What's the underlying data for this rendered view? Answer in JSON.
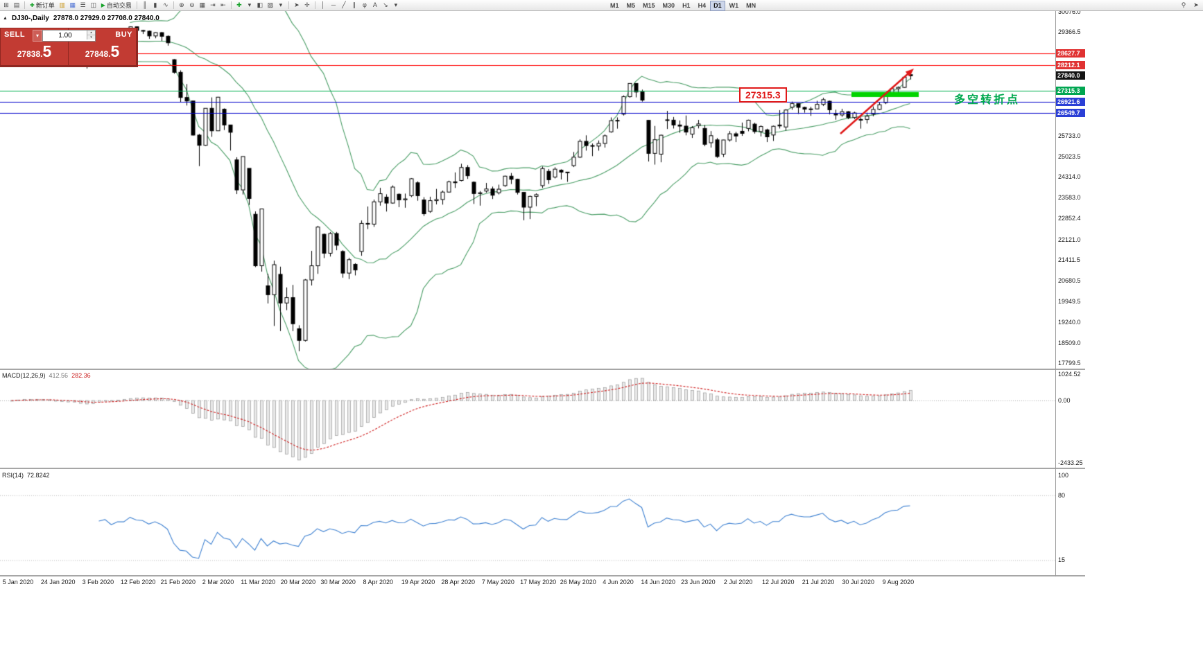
{
  "colors": {
    "panel_red": "#c23b33",
    "panel_red_dark": "#8f2721",
    "tag_red": "#e03232",
    "tag_black": "#141414",
    "tag_green": "#00a651",
    "tag_blue": "#2b3fd6",
    "line_red": "#ff0000",
    "line_green": "#00b050",
    "line_blue": "#0000cc",
    "band_green": "#4a9e66",
    "rsi_blue": "#3f82d2",
    "macd_bar_fill": "#e8e8e8",
    "macd_bar_stroke": "#8c8c8c",
    "macd_signal": "#d02020",
    "highlight_green": "#00d400",
    "arrow_red": "#e01818",
    "callout_red": "#e01818",
    "annotation_green": "#00a94f",
    "candle_up": "#ffffff",
    "candle_down": "#000000",
    "candle_border": "#000000"
  },
  "toolbar": {
    "items": [
      {
        "name": "new-chart-icon",
        "glyph": "⊞"
      },
      {
        "name": "profiles-icon",
        "glyph": "▤"
      },
      {
        "sep": true
      },
      {
        "name": "new-order-button",
        "icon": "✚",
        "icon_color": "#18a32b",
        "label": "新订单"
      },
      {
        "name": "market-watch-icon",
        "glyph": "▥",
        "color": "#c9971d"
      },
      {
        "name": "data-window-icon",
        "glyph": "▦",
        "color": "#4a6fd4"
      },
      {
        "name": "navigator-icon",
        "glyph": "☰"
      },
      {
        "name": "terminal-icon",
        "glyph": "◫"
      },
      {
        "name": "autotrade-button",
        "icon": "▶",
        "icon_color": "#18a32b",
        "label": "自动交易"
      },
      {
        "sep": true
      },
      {
        "name": "bar-chart-icon",
        "glyph": "║"
      },
      {
        "name": "candlestick-chart-icon",
        "glyph": "▮"
      },
      {
        "name": "line-chart-icon",
        "glyph": "∿"
      },
      {
        "sep": true
      },
      {
        "name": "zoom-in-icon",
        "glyph": "⊕"
      },
      {
        "name": "zoom-out-icon",
        "glyph": "⊖"
      },
      {
        "name": "tile-windows-icon",
        "glyph": "▦"
      },
      {
        "name": "auto-scroll-icon",
        "glyph": "⇥"
      },
      {
        "name": "chart-shift-icon",
        "glyph": "⇤"
      },
      {
        "sep": true
      },
      {
        "name": "indicators-icon",
        "glyph": "✚",
        "color": "#18a32b"
      },
      {
        "name": "indicators-dropdown-icon",
        "glyph": "▾"
      },
      {
        "name": "periods-icon",
        "glyph": "◧"
      },
      {
        "name": "templates-icon",
        "glyph": "▨"
      },
      {
        "name": "templates-dropdown-icon",
        "glyph": "▾"
      },
      {
        "sep": true
      },
      {
        "name": "cursor-icon",
        "glyph": "➤"
      },
      {
        "name": "crosshair-icon",
        "glyph": "✛"
      },
      {
        "sep": true
      },
      {
        "name": "vertical-line-icon",
        "glyph": "│"
      },
      {
        "name": "horizontal-line-icon",
        "glyph": "─"
      },
      {
        "name": "trendline-icon",
        "glyph": "╱"
      },
      {
        "name": "channel-icon",
        "glyph": "∥"
      },
      {
        "name": "fibonacci-icon",
        "glyph": "φ"
      },
      {
        "name": "text-label-icon",
        "glyph": "A"
      },
      {
        "name": "arrows-icon",
        "glyph": "↘"
      },
      {
        "name": "arrows-dropdown-icon",
        "glyph": "▾"
      }
    ],
    "timeframes": [
      {
        "label": "M1"
      },
      {
        "label": "M5"
      },
      {
        "label": "M15"
      },
      {
        "label": "M30"
      },
      {
        "label": "H1"
      },
      {
        "label": "H4"
      },
      {
        "label": "D1",
        "active": true
      },
      {
        "label": "W1"
      },
      {
        "label": "MN"
      }
    ],
    "right_icons": [
      {
        "name": "search-symbol-icon",
        "glyph": "⚲"
      },
      {
        "name": "pointer-tool-icon",
        "glyph": "➤"
      }
    ]
  },
  "chart_header": {
    "collapse_icon": "▲",
    "symbol": "DJ30-,Daily",
    "ohlc": "27878.0 27929.0 27708.0 27840.0"
  },
  "one_click": {
    "sell_label": "SELL",
    "buy_label": "BUY",
    "lot_value": "1.00",
    "dropdown_icon": "▾",
    "spinner_up": "▴",
    "spinner_down": "▾",
    "sell_price": {
      "main": "27838.",
      "big": "5"
    },
    "buy_price": {
      "main": "27848.",
      "big": "5"
    }
  },
  "price_scale": {
    "labels": [
      "30076.0",
      "29366.5",
      "25733.0",
      "25023.5",
      "24314.0",
      "23583.0",
      "22852.4",
      "22121.0",
      "21411.5",
      "20680.5",
      "19949.5",
      "19240.0",
      "18509.0",
      "17799.5"
    ]
  },
  "levels": [
    {
      "label": "28627.7",
      "price": 28627.7,
      "line": "red"
    },
    {
      "label": "28212.1",
      "price": 28212.1,
      "line": "red"
    },
    {
      "label": "27840.0",
      "price": 27840.0,
      "line": "none"
    },
    {
      "label": "27315.3",
      "price": 27315.3,
      "line": "green"
    },
    {
      "label": "26921.6",
      "price": 26921.6,
      "line": "blue"
    },
    {
      "label": "26549.7",
      "price": 26549.7,
      "line": "blue"
    }
  ],
  "annotations": {
    "price_callout": "27315.3",
    "turning_point_label": "多空转折点"
  },
  "macd_panel": {
    "name": "MACD(12,26,9)",
    "main_value": "412.56",
    "signal_value": "282.36",
    "scale": [
      {
        "label": "1024.52",
        "value": 1024.52
      },
      {
        "label": "0.00",
        "value": 0
      },
      {
        "label": "-2433.25",
        "value": -2433.25
      }
    ],
    "params": {
      "fast": 12,
      "slow": 26,
      "signal": 9
    }
  },
  "rsi_panel": {
    "name": "RSI(14)",
    "value": "72.8242",
    "period": 14,
    "scale": [
      {
        "label": "100",
        "value": 100
      },
      {
        "label": "80",
        "value": 80
      },
      {
        "label": "15",
        "value": 15
      }
    ]
  },
  "date_axis": [
    "5 Jan 2020",
    "24 Jan 2020",
    "3 Feb 2020",
    "12 Feb 2020",
    "21 Feb 2020",
    "2 Mar 2020",
    "11 Mar 2020",
    "20 Mar 2020",
    "30 Mar 2020",
    "8 Apr 2020",
    "19 Apr 2020",
    "28 Apr 2020",
    "7 May 2020",
    "17 May 2020",
    "26 May 2020",
    "4 Jun 2020",
    "14 Jun 2020",
    "23 Jun 2020",
    "2 Jul 2020",
    "12 Jul 2020",
    "21 Jul 2020",
    "30 Jul 2020",
    "9 Aug 2020"
  ],
  "chart_data": {
    "type": "candlestick",
    "symbol": "DJ30",
    "timeframe": "Daily",
    "bollinger": {
      "period": 20,
      "deviation": 2
    },
    "candles": [
      [
        29100,
        29127,
        28998,
        29030
      ],
      [
        29030,
        29300,
        29007,
        29297
      ],
      [
        29297,
        29373,
        29240,
        29348
      ],
      [
        29348,
        29350,
        29064,
        29196
      ],
      [
        29196,
        29320,
        29152,
        29186
      ],
      [
        29186,
        29240,
        29061,
        29160
      ],
      [
        29160,
        29189,
        28843,
        28990
      ],
      [
        28640,
        28671,
        28440,
        28536
      ],
      [
        28536,
        28750,
        28477,
        28723
      ],
      [
        28723,
        28790,
        28608,
        28734
      ],
      [
        28734,
        28944,
        28682,
        28859
      ],
      [
        28859,
        28872,
        28169,
        28256
      ],
      [
        28256,
        28470,
        28092,
        28400
      ],
      [
        28400,
        28830,
        28380,
        28808
      ],
      [
        28808,
        29300,
        28760,
        29291
      ],
      [
        29291,
        29408,
        29246,
        29380
      ],
      [
        29380,
        29387,
        29056,
        29103
      ],
      [
        29103,
        29288,
        29090,
        29277
      ],
      [
        29277,
        29329,
        29205,
        29276
      ],
      [
        29276,
        29568,
        29270,
        29551
      ],
      [
        29551,
        29560,
        29340,
        29423
      ],
      [
        29423,
        29445,
        29300,
        29398
      ],
      [
        29398,
        29420,
        29130,
        29232
      ],
      [
        29232,
        29360,
        29150,
        29348
      ],
      [
        29348,
        29369,
        29058,
        29220
      ],
      [
        29220,
        29250,
        28892,
        28992
      ],
      [
        28403,
        28420,
        27912,
        27961
      ],
      [
        27961,
        28030,
        26927,
        27081
      ],
      [
        27081,
        27550,
        26800,
        26958
      ],
      [
        26958,
        26960,
        25752,
        25767
      ],
      [
        25767,
        25806,
        24681,
        25409
      ],
      [
        25409,
        26706,
        25391,
        26703
      ],
      [
        26703,
        27084,
        25706,
        25917
      ],
      [
        25917,
        27102,
        25916,
        27091
      ],
      [
        26671,
        26700,
        25943,
        26121
      ],
      [
        26121,
        26121,
        25226,
        25865
      ],
      [
        24900,
        24992,
        23707,
        23851
      ],
      [
        23851,
        25020,
        23690,
        25018
      ],
      [
        24604,
        24604,
        23328,
        23553
      ],
      [
        23000,
        23100,
        21154,
        21201
      ],
      [
        21201,
        23189,
        20995,
        23186
      ],
      [
        20500,
        20917,
        19882,
        20189
      ],
      [
        20189,
        21379,
        19096,
        21237
      ],
      [
        20900,
        21169,
        18918,
        19899
      ],
      [
        19899,
        20442,
        19649,
        20087
      ],
      [
        20087,
        20531,
        18917,
        19174
      ],
      [
        19000,
        19121,
        18213,
        18592
      ],
      [
        18592,
        20737,
        18552,
        20705
      ],
      [
        20705,
        21721,
        20510,
        21200
      ],
      [
        21200,
        22595,
        20918,
        22552
      ],
      [
        22300,
        22327,
        21469,
        21637
      ],
      [
        21637,
        22378,
        21522,
        22327
      ],
      [
        22327,
        22380,
        21742,
        21917
      ],
      [
        21700,
        21742,
        20784,
        20944
      ],
      [
        20944,
        21477,
        20735,
        21413
      ],
      [
        21250,
        21289,
        20863,
        21053
      ],
      [
        21700,
        22783,
        21550,
        22680
      ],
      [
        22680,
        23271,
        22482,
        22654
      ],
      [
        22654,
        23513,
        22560,
        23434
      ],
      [
        23434,
        23923,
        23301,
        23719
      ],
      [
        23600,
        23698,
        23095,
        23391
      ],
      [
        23391,
        24009,
        23368,
        23950
      ],
      [
        23700,
        23729,
        23249,
        23504
      ],
      [
        23504,
        23722,
        23228,
        23537
      ],
      [
        23650,
        24265,
        23600,
        24242
      ],
      [
        24100,
        24150,
        23473,
        23650
      ],
      [
        23500,
        23597,
        22941,
        23018
      ],
      [
        23100,
        23613,
        23050,
        23476
      ],
      [
        23476,
        23885,
        23344,
        23515
      ],
      [
        23515,
        23829,
        23336,
        23775
      ],
      [
        23775,
        24175,
        23759,
        24134
      ],
      [
        24134,
        24462,
        23919,
        24102
      ],
      [
        24180,
        24765,
        24150,
        24634
      ],
      [
        24634,
        24717,
        24235,
        24346
      ],
      [
        24120,
        24150,
        23361,
        23724
      ],
      [
        23724,
        23811,
        23301,
        23749
      ],
      [
        23810,
        24094,
        23755,
        23883
      ],
      [
        23883,
        23967,
        23533,
        23665
      ],
      [
        23750,
        24034,
        23693,
        23876
      ],
      [
        24000,
        24349,
        23960,
        24331
      ],
      [
        24331,
        24442,
        24056,
        24222
      ],
      [
        24222,
        24243,
        23690,
        23765
      ],
      [
        23765,
        23773,
        22790,
        23248
      ],
      [
        23248,
        23653,
        22832,
        23625
      ],
      [
        23625,
        23731,
        23282,
        23685
      ],
      [
        24000,
        24667,
        23920,
        24597
      ],
      [
        24500,
        24578,
        24060,
        24206
      ],
      [
        24300,
        24644,
        24250,
        24576
      ],
      [
        24540,
        24571,
        24216,
        24474
      ],
      [
        24474,
        24482,
        24132,
        24465
      ],
      [
        24700,
        25176,
        24650,
        24995
      ],
      [
        24995,
        25617,
        24971,
        25548
      ],
      [
        25548,
        25758,
        25224,
        25401
      ],
      [
        25401,
        25473,
        25031,
        25383
      ],
      [
        25383,
        25579,
        25222,
        25475
      ],
      [
        25475,
        25790,
        25329,
        25743
      ],
      [
        25880,
        26384,
        25850,
        26270
      ],
      [
        26270,
        26385,
        25992,
        26282
      ],
      [
        26500,
        27153,
        26450,
        27111
      ],
      [
        27111,
        27581,
        27073,
        27572
      ],
      [
        27572,
        27577,
        27085,
        27272
      ],
      [
        27272,
        27355,
        26938,
        26990
      ],
      [
        26282,
        26294,
        24843,
        25128
      ],
      [
        25128,
        26087,
        24735,
        25605
      ],
      [
        25100,
        25780,
        24817,
        25763
      ],
      [
        26300,
        26611,
        25980,
        26290
      ],
      [
        26290,
        26400,
        25997,
        26120
      ],
      [
        26120,
        26278,
        25848,
        26080
      ],
      [
        26080,
        26451,
        25759,
        25871
      ],
      [
        25800,
        26081,
        25667,
        26025
      ],
      [
        26100,
        26298,
        26000,
        26156
      ],
      [
        26000,
        26119,
        25376,
        25445
      ],
      [
        25500,
        25907,
        25330,
        25746
      ],
      [
        25600,
        25664,
        24971,
        25016
      ],
      [
        25100,
        25602,
        25000,
        25596
      ],
      [
        25596,
        25907,
        25540,
        25813
      ],
      [
        25813,
        25880,
        25523,
        25735
      ],
      [
        25900,
        26204,
        25740,
        25827
      ],
      [
        26000,
        26306,
        25900,
        26287
      ],
      [
        26150,
        26198,
        25819,
        25890
      ],
      [
        25890,
        26109,
        25720,
        26067
      ],
      [
        25950,
        25990,
        25523,
        25706
      ],
      [
        25770,
        26098,
        25561,
        26075
      ],
      [
        26120,
        26639,
        25996,
        26086
      ],
      [
        26050,
        26675,
        25920,
        26643
      ],
      [
        26740,
        26938,
        26653,
        26870
      ],
      [
        26870,
        26877,
        26504,
        26735
      ],
      [
        26735,
        26760,
        26550,
        26672
      ],
      [
        26672,
        26756,
        26440,
        26681
      ],
      [
        26681,
        26963,
        26663,
        26840
      ],
      [
        26840,
        27071,
        26782,
        27005
      ],
      [
        26950,
        26970,
        26490,
        26652
      ],
      [
        26500,
        26654,
        26305,
        26470
      ],
      [
        26470,
        26686,
        26404,
        26585
      ],
      [
        26585,
        26604,
        26323,
        26379
      ],
      [
        26379,
        26583,
        26325,
        26540
      ],
      [
        26300,
        26383,
        25992,
        26313
      ],
      [
        26313,
        26551,
        26170,
        26428
      ],
      [
        26500,
        26768,
        26424,
        26664
      ],
      [
        26664,
        26925,
        26639,
        26828
      ],
      [
        26900,
        27268,
        26850,
        27202
      ],
      [
        27202,
        27447,
        27160,
        27387
      ],
      [
        27387,
        27466,
        27180,
        27433
      ],
      [
        27433,
        27811,
        27420,
        27791
      ],
      [
        27878,
        27929,
        27708,
        27840
      ]
    ]
  }
}
